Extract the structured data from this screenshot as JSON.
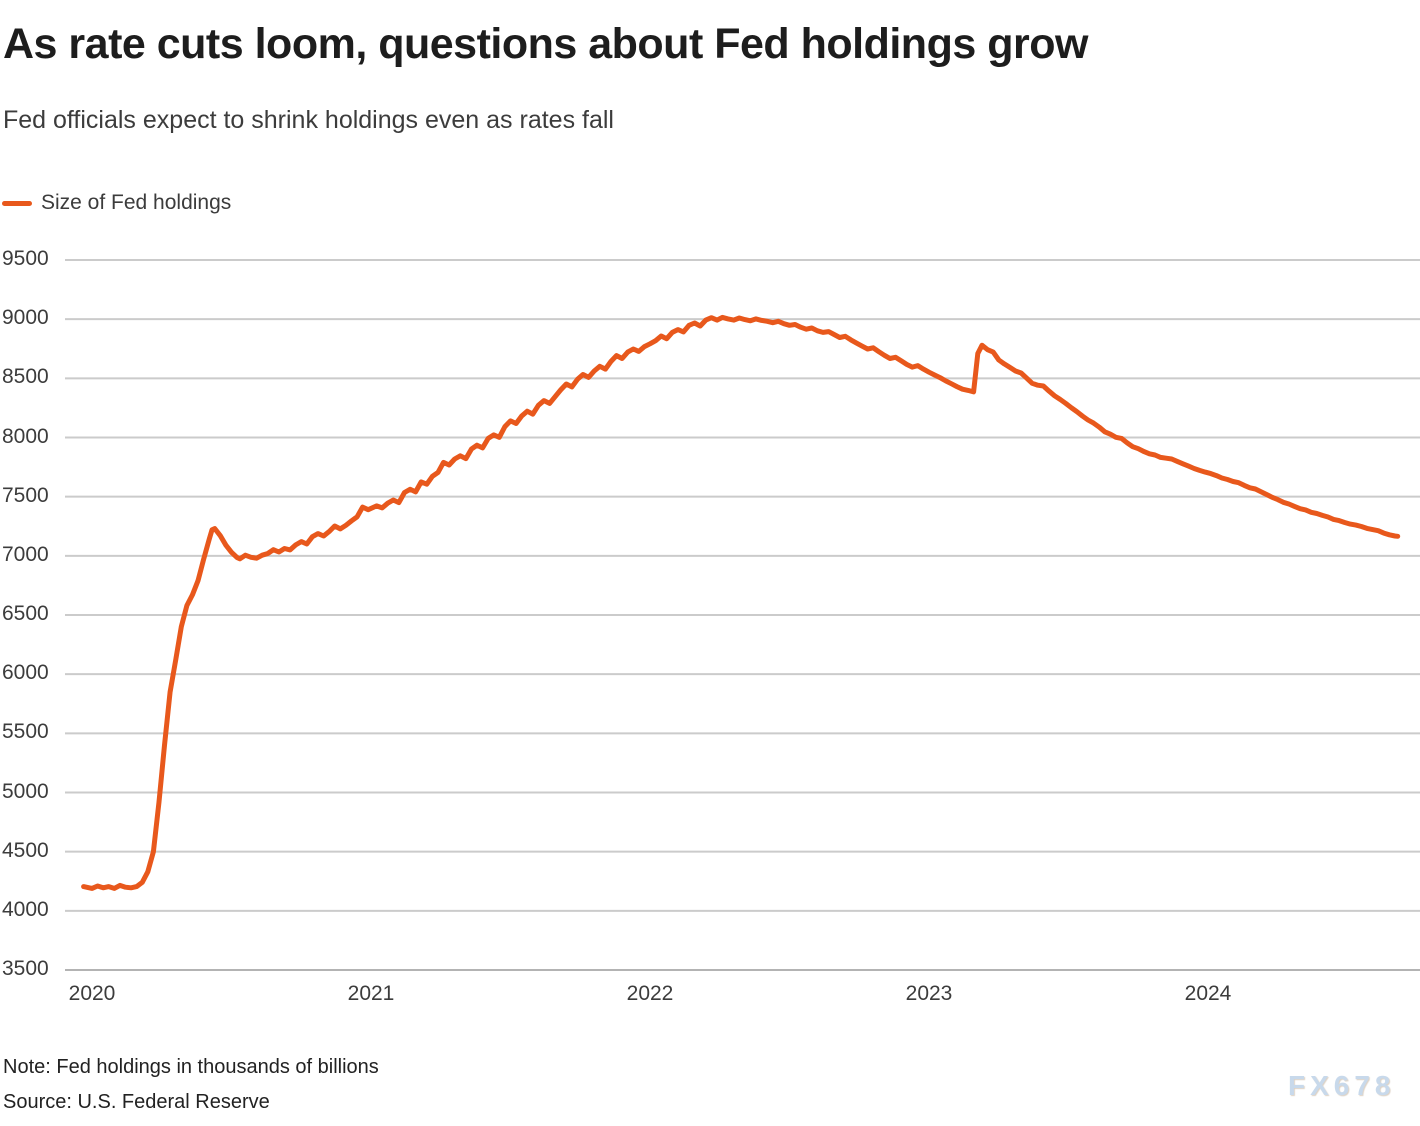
{
  "header": {
    "title": "As rate cuts loom, questions about Fed holdings grow",
    "subtitle": "Fed officials expect to shrink holdings even as rates fall"
  },
  "footer": {
    "note": "Note: Fed holdings in thousands of billions",
    "source": "Source: U.S. Federal Reserve",
    "watermark": "FX678"
  },
  "colors": {
    "series_orange": "#e8581c",
    "gridline": "#cbcbcb",
    "baseline": "#b3b3b3",
    "text_dark": "#1d1d1d",
    "text_gray": "#3c3c3c",
    "watermark_blue": "#c8d9eb"
  },
  "chart_data": {
    "type": "line",
    "title": "As rate cuts loom, questions about Fed holdings grow",
    "subtitle": "Fed officials expect to shrink holdings even as rates fall",
    "xlabel": "",
    "ylabel": "",
    "grid": "horizontal",
    "legend_position": "top-left",
    "y_axis": {
      "range": [
        3500,
        9500
      ],
      "ticks": [
        3500,
        4000,
        4500,
        5000,
        5500,
        6000,
        6500,
        7000,
        7500,
        8000,
        8500,
        9000,
        9500
      ],
      "tick_labels": [
        "3500",
        "4000",
        "4500",
        "5000",
        "5500",
        "6000",
        "6500",
        "7000",
        "7500",
        "8000",
        "8500",
        "9000",
        "9500"
      ]
    },
    "x_axis": {
      "tick_years": [
        2020,
        2021,
        2022,
        2023,
        2024
      ],
      "tick_labels": [
        "2020",
        "2021",
        "2022",
        "2023",
        "2024"
      ],
      "range_years": [
        2019.9,
        2024.77
      ]
    },
    "series": [
      {
        "name": "Size of Fed holdings",
        "color": "#e8581c",
        "points": [
          [
            2019.97,
            4205
          ],
          [
            2020.0,
            4190
          ],
          [
            2020.02,
            4210
          ],
          [
            2020.04,
            4195
          ],
          [
            2020.06,
            4205
          ],
          [
            2020.08,
            4190
          ],
          [
            2020.1,
            4215
          ],
          [
            2020.12,
            4200
          ],
          [
            2020.14,
            4195
          ],
          [
            2020.16,
            4205
          ],
          [
            2020.18,
            4240
          ],
          [
            2020.2,
            4330
          ],
          [
            2020.22,
            4500
          ],
          [
            2020.24,
            4920
          ],
          [
            2020.26,
            5400
          ],
          [
            2020.28,
            5850
          ],
          [
            2020.3,
            6120
          ],
          [
            2020.32,
            6400
          ],
          [
            2020.34,
            6580
          ],
          [
            2020.36,
            6670
          ],
          [
            2020.38,
            6790
          ],
          [
            2020.4,
            6970
          ],
          [
            2020.42,
            7140
          ],
          [
            2020.43,
            7220
          ],
          [
            2020.44,
            7230
          ],
          [
            2020.46,
            7170
          ],
          [
            2020.48,
            7090
          ],
          [
            2020.5,
            7030
          ],
          [
            2020.52,
            6985
          ],
          [
            2020.53,
            6975
          ],
          [
            2020.55,
            7005
          ],
          [
            2020.57,
            6988
          ],
          [
            2020.59,
            6980
          ],
          [
            2020.61,
            7005
          ],
          [
            2020.63,
            7020
          ],
          [
            2020.65,
            7052
          ],
          [
            2020.67,
            7032
          ],
          [
            2020.69,
            7062
          ],
          [
            2020.71,
            7050
          ],
          [
            2020.73,
            7092
          ],
          [
            2020.75,
            7120
          ],
          [
            2020.77,
            7100
          ],
          [
            2020.79,
            7162
          ],
          [
            2020.81,
            7188
          ],
          [
            2020.83,
            7168
          ],
          [
            2020.85,
            7205
          ],
          [
            2020.87,
            7252
          ],
          [
            2020.89,
            7228
          ],
          [
            2020.91,
            7258
          ],
          [
            2020.93,
            7295
          ],
          [
            2020.95,
            7330
          ],
          [
            2020.97,
            7412
          ],
          [
            2020.99,
            7390
          ],
          [
            2021.02,
            7422
          ],
          [
            2021.04,
            7405
          ],
          [
            2021.06,
            7445
          ],
          [
            2021.08,
            7472
          ],
          [
            2021.1,
            7450
          ],
          [
            2021.12,
            7535
          ],
          [
            2021.14,
            7562
          ],
          [
            2021.16,
            7540
          ],
          [
            2021.18,
            7625
          ],
          [
            2021.2,
            7605
          ],
          [
            2021.22,
            7672
          ],
          [
            2021.24,
            7705
          ],
          [
            2021.26,
            7790
          ],
          [
            2021.28,
            7768
          ],
          [
            2021.3,
            7818
          ],
          [
            2021.32,
            7845
          ],
          [
            2021.34,
            7822
          ],
          [
            2021.36,
            7902
          ],
          [
            2021.38,
            7935
          ],
          [
            2021.4,
            7912
          ],
          [
            2021.42,
            7992
          ],
          [
            2021.44,
            8022
          ],
          [
            2021.46,
            8002
          ],
          [
            2021.48,
            8092
          ],
          [
            2021.5,
            8140
          ],
          [
            2021.52,
            8118
          ],
          [
            2021.54,
            8182
          ],
          [
            2021.56,
            8222
          ],
          [
            2021.58,
            8198
          ],
          [
            2021.6,
            8272
          ],
          [
            2021.62,
            8312
          ],
          [
            2021.64,
            8288
          ],
          [
            2021.66,
            8345
          ],
          [
            2021.68,
            8402
          ],
          [
            2021.7,
            8452
          ],
          [
            2021.72,
            8428
          ],
          [
            2021.74,
            8492
          ],
          [
            2021.76,
            8532
          ],
          [
            2021.78,
            8508
          ],
          [
            2021.8,
            8562
          ],
          [
            2021.82,
            8602
          ],
          [
            2021.84,
            8578
          ],
          [
            2021.86,
            8642
          ],
          [
            2021.88,
            8692
          ],
          [
            2021.9,
            8668
          ],
          [
            2021.92,
            8722
          ],
          [
            2021.94,
            8748
          ],
          [
            2021.96,
            8728
          ],
          [
            2021.98,
            8768
          ],
          [
            2022.0,
            8792
          ],
          [
            2022.02,
            8818
          ],
          [
            2022.04,
            8858
          ],
          [
            2022.06,
            8835
          ],
          [
            2022.08,
            8888
          ],
          [
            2022.1,
            8912
          ],
          [
            2022.12,
            8892
          ],
          [
            2022.14,
            8948
          ],
          [
            2022.16,
            8968
          ],
          [
            2022.18,
            8942
          ],
          [
            2022.2,
            8992
          ],
          [
            2022.22,
            9012
          ],
          [
            2022.24,
            8992
          ],
          [
            2022.26,
            9015
          ],
          [
            2022.28,
            9002
          ],
          [
            2022.3,
            8992
          ],
          [
            2022.32,
            9010
          ],
          [
            2022.34,
            8996
          ],
          [
            2022.36,
            8986
          ],
          [
            2022.38,
            9002
          ],
          [
            2022.4,
            8990
          ],
          [
            2022.42,
            8982
          ],
          [
            2022.44,
            8970
          ],
          [
            2022.46,
            8982
          ],
          [
            2022.48,
            8962
          ],
          [
            2022.5,
            8948
          ],
          [
            2022.52,
            8955
          ],
          [
            2022.54,
            8932
          ],
          [
            2022.56,
            8915
          ],
          [
            2022.58,
            8925
          ],
          [
            2022.6,
            8902
          ],
          [
            2022.62,
            8888
          ],
          [
            2022.64,
            8895
          ],
          [
            2022.66,
            8870
          ],
          [
            2022.68,
            8845
          ],
          [
            2022.7,
            8855
          ],
          [
            2022.72,
            8825
          ],
          [
            2022.74,
            8798
          ],
          [
            2022.76,
            8772
          ],
          [
            2022.78,
            8748
          ],
          [
            2022.8,
            8758
          ],
          [
            2022.82,
            8725
          ],
          [
            2022.84,
            8695
          ],
          [
            2022.86,
            8668
          ],
          [
            2022.88,
            8678
          ],
          [
            2022.9,
            8648
          ],
          [
            2022.92,
            8618
          ],
          [
            2022.94,
            8595
          ],
          [
            2022.96,
            8608
          ],
          [
            2022.98,
            8578
          ],
          [
            2023.0,
            8552
          ],
          [
            2023.02,
            8528
          ],
          [
            2023.04,
            8505
          ],
          [
            2023.06,
            8478
          ],
          [
            2023.08,
            8455
          ],
          [
            2023.1,
            8430
          ],
          [
            2023.12,
            8408
          ],
          [
            2023.14,
            8398
          ],
          [
            2023.16,
            8385
          ],
          [
            2023.175,
            8710
          ],
          [
            2023.19,
            8780
          ],
          [
            2023.21,
            8742
          ],
          [
            2023.23,
            8722
          ],
          [
            2023.25,
            8655
          ],
          [
            2023.27,
            8622
          ],
          [
            2023.29,
            8592
          ],
          [
            2023.31,
            8562
          ],
          [
            2023.33,
            8545
          ],
          [
            2023.35,
            8502
          ],
          [
            2023.37,
            8458
          ],
          [
            2023.39,
            8442
          ],
          [
            2023.41,
            8435
          ],
          [
            2023.43,
            8392
          ],
          [
            2023.45,
            8352
          ],
          [
            2023.47,
            8322
          ],
          [
            2023.49,
            8288
          ],
          [
            2023.51,
            8252
          ],
          [
            2023.53,
            8218
          ],
          [
            2023.55,
            8182
          ],
          [
            2023.57,
            8148
          ],
          [
            2023.59,
            8122
          ],
          [
            2023.61,
            8088
          ],
          [
            2023.63,
            8048
          ],
          [
            2023.65,
            8028
          ],
          [
            2023.67,
            8002
          ],
          [
            2023.69,
            7992
          ],
          [
            2023.71,
            7955
          ],
          [
            2023.73,
            7922
          ],
          [
            2023.75,
            7905
          ],
          [
            2023.77,
            7882
          ],
          [
            2023.79,
            7862
          ],
          [
            2023.81,
            7852
          ],
          [
            2023.83,
            7832
          ],
          [
            2023.85,
            7825
          ],
          [
            2023.87,
            7818
          ],
          [
            2023.89,
            7798
          ],
          [
            2023.91,
            7778
          ],
          [
            2023.93,
            7758
          ],
          [
            2023.95,
            7738
          ],
          [
            2023.97,
            7722
          ],
          [
            2023.99,
            7708
          ],
          [
            2024.01,
            7695
          ],
          [
            2024.03,
            7678
          ],
          [
            2024.05,
            7658
          ],
          [
            2024.07,
            7645
          ],
          [
            2024.09,
            7628
          ],
          [
            2024.11,
            7618
          ],
          [
            2024.13,
            7595
          ],
          [
            2024.15,
            7575
          ],
          [
            2024.17,
            7565
          ],
          [
            2024.19,
            7542
          ],
          [
            2024.21,
            7518
          ],
          [
            2024.23,
            7495
          ],
          [
            2024.25,
            7475
          ],
          [
            2024.27,
            7452
          ],
          [
            2024.29,
            7438
          ],
          [
            2024.31,
            7418
          ],
          [
            2024.33,
            7398
          ],
          [
            2024.35,
            7388
          ],
          [
            2024.37,
            7368
          ],
          [
            2024.39,
            7358
          ],
          [
            2024.41,
            7342
          ],
          [
            2024.43,
            7328
          ],
          [
            2024.45,
            7308
          ],
          [
            2024.47,
            7298
          ],
          [
            2024.49,
            7282
          ],
          [
            2024.51,
            7268
          ],
          [
            2024.53,
            7260
          ],
          [
            2024.55,
            7248
          ],
          [
            2024.57,
            7232
          ],
          [
            2024.59,
            7222
          ],
          [
            2024.61,
            7212
          ],
          [
            2024.63,
            7192
          ],
          [
            2024.65,
            7178
          ],
          [
            2024.67,
            7168
          ],
          [
            2024.68,
            7165
          ]
        ]
      }
    ]
  }
}
